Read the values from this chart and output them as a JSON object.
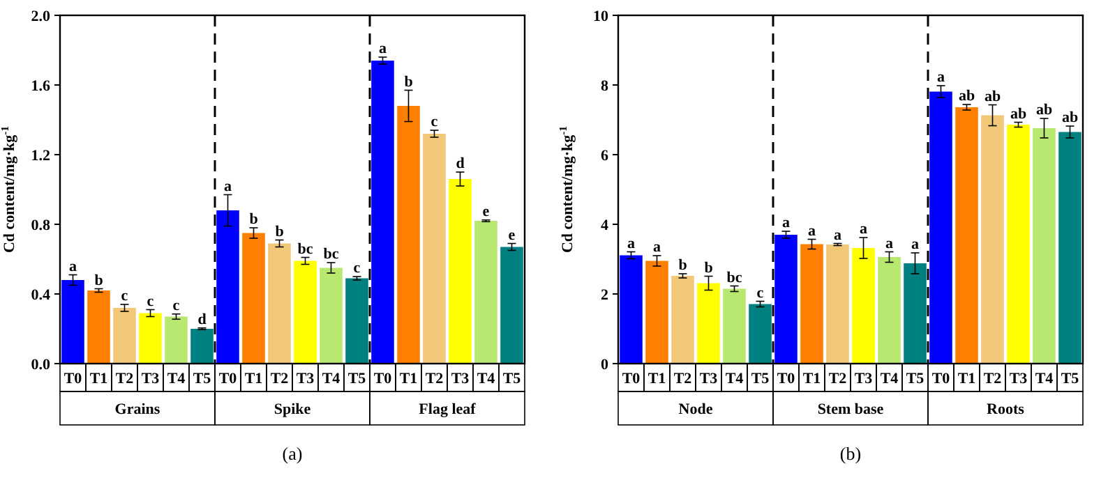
{
  "chart_data": [
    {
      "type": "bar",
      "title": "(a)",
      "ylabel": "Cd content/mg·kg$^{-1}$",
      "categories": [
        "T0",
        "T1",
        "T2",
        "T3",
        "T4",
        "T5",
        "T0",
        "T1",
        "T2",
        "T3",
        "T4",
        "T5",
        "T0",
        "T1",
        "T2",
        "T3",
        "T4",
        "T5"
      ],
      "values": [
        0.48,
        0.42,
        0.32,
        0.29,
        0.27,
        0.2,
        0.88,
        0.75,
        0.69,
        0.59,
        0.55,
        0.49,
        1.74,
        1.48,
        1.32,
        1.06,
        0.82,
        0.67
      ],
      "errors": [
        0.03,
        0.01,
        0.02,
        0.02,
        0.015,
        0.005,
        0.09,
        0.03,
        0.02,
        0.02,
        0.03,
        0.01,
        0.02,
        0.09,
        0.02,
        0.04,
        0.005,
        0.02
      ],
      "value_labels": [
        "a",
        "b",
        "c",
        "c",
        "c",
        "d",
        "a",
        "b",
        "b",
        "bc",
        "bc",
        "c",
        "a",
        "b",
        "c",
        "d",
        "e",
        "e"
      ],
      "colors": [
        "#0000ff",
        "#ff8000",
        "#f0c878",
        "#ffff00",
        "#b8e870",
        "#008080",
        "#0000ff",
        "#ff8000",
        "#f0c878",
        "#ffff00",
        "#b8e870",
        "#008080",
        "#0000ff",
        "#ff8000",
        "#f0c878",
        "#ffff00",
        "#b8e870",
        "#008080"
      ],
      "annotations": [
        "Grains",
        "Spike",
        "Flag leaf"
      ],
      "ylim": [
        0,
        2
      ],
      "yticks": [
        {
          "value": 0,
          "label": "0.0"
        },
        0.4,
        0.8,
        1.2,
        1.6,
        {
          "value": 2,
          "label": "2.0"
        }
      ]
    },
    {
      "type": "bar",
      "title": "(b)",
      "ylabel": "Cd content/mg·kg$^{-1}$",
      "categories": [
        "T0",
        "T1",
        "T2",
        "T3",
        "T4",
        "T5",
        "T0",
        "T1",
        "T2",
        "T3",
        "T4",
        "T5",
        "T0",
        "T1",
        "T2",
        "T3",
        "T4",
        "T5"
      ],
      "values": [
        3.11,
        2.95,
        2.52,
        2.31,
        2.15,
        1.71,
        3.7,
        3.43,
        3.42,
        3.32,
        3.06,
        2.88,
        7.81,
        7.36,
        7.13,
        6.86,
        6.76,
        6.65
      ],
      "errors": [
        0.1,
        0.15,
        0.06,
        0.2,
        0.08,
        0.08,
        0.1,
        0.14,
        0.03,
        0.3,
        0.15,
        0.3,
        0.17,
        0.08,
        0.3,
        0.07,
        0.28,
        0.17
      ],
      "value_labels": [
        "a",
        "a",
        "b",
        "b",
        "bc",
        "c",
        "a",
        "a",
        "a",
        "a",
        "a",
        "a",
        "a",
        "ab",
        "ab",
        "ab",
        "ab",
        "ab"
      ],
      "colors": [
        "#0000ff",
        "#ff8000",
        "#f0c878",
        "#ffff00",
        "#b8e870",
        "#008080",
        "#0000ff",
        "#ff8000",
        "#f0c878",
        "#ffff00",
        "#b8e870",
        "#008080",
        "#0000ff",
        "#ff8000",
        "#f0c878",
        "#ffff00",
        "#b8e870",
        "#008080"
      ],
      "annotations": [
        "Node",
        "Stem base",
        "Roots"
      ],
      "ylim": [
        0,
        10
      ],
      "yticks": [
        0,
        2,
        4,
        6,
        8,
        10
      ]
    }
  ]
}
